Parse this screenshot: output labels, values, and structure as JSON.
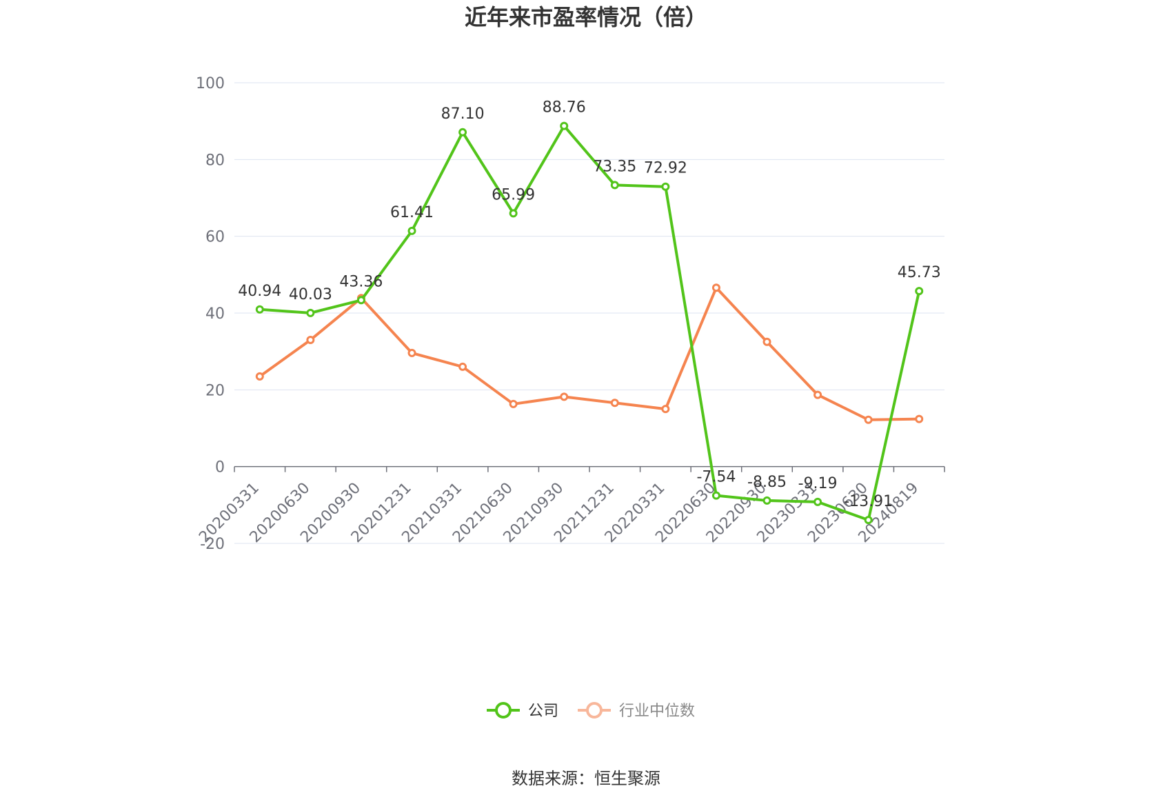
{
  "title": "近年来市盈率情况（倍）",
  "source": "数据来源：恒生聚源",
  "colors": {
    "company": "#52c41a",
    "industry": "#f5844f",
    "legend_industry_inactive": "#f8b79b",
    "grid": "#dde3f0",
    "axis": "#6e7079",
    "text": "#333333"
  },
  "chart_data": {
    "type": "line",
    "title": "近年来市盈率情况（倍）",
    "xlabel": "",
    "ylabel": "",
    "ylim": [
      -20,
      100
    ],
    "yticks": [
      -20,
      0,
      20,
      40,
      60,
      80,
      100
    ],
    "grid": true,
    "legend_position": "bottom-center",
    "categories": [
      "20200331",
      "20200630",
      "20200930",
      "20201231",
      "20210331",
      "20210630",
      "20210930",
      "20211231",
      "20220331",
      "20220630",
      "20220930",
      "20230331",
      "20230630",
      "20240819"
    ],
    "series": [
      {
        "name": "公司",
        "values": [
          40.94,
          40.03,
          43.36,
          61.41,
          87.1,
          65.99,
          88.76,
          73.35,
          72.92,
          -7.54,
          -8.85,
          -9.19,
          -13.91,
          45.73
        ],
        "labels": [
          "40.94",
          "40.03",
          "43.36",
          "61.41",
          "87.10",
          "65.99",
          "88.76",
          "73.35",
          "72.92",
          "-7.54",
          "-8.85",
          "-9.19",
          "-13.91",
          "45.73"
        ]
      },
      {
        "name": "行业中位数",
        "values": [
          23.5,
          33.0,
          43.9,
          29.6,
          26.0,
          16.3,
          18.2,
          16.6,
          15.0,
          46.6,
          32.5,
          18.7,
          12.2,
          12.4
        ]
      }
    ]
  }
}
